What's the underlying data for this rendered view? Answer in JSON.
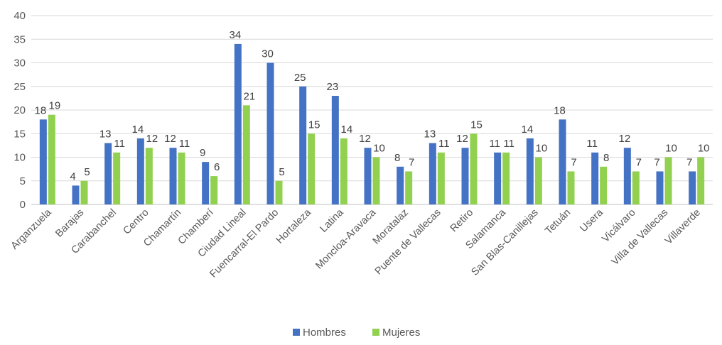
{
  "chart_data": {
    "type": "bar",
    "categories": [
      "Arganzuela",
      "Barajas",
      "Carabanchel",
      "Centro",
      "Chamartín",
      "Chamberí",
      "Ciudad Lineal",
      "Fuencarral-El Pardo",
      "Hortaleza",
      "Latina",
      "Moncloa-Aravaca",
      "Moratalaz",
      "Puente de Vallecas",
      "Retiro",
      "Salamanca",
      "San Blas-Canillejas",
      "Tetuán",
      "Usera",
      "Vicálvaro",
      "Villa de Vallecas",
      "Villaverde"
    ],
    "series": [
      {
        "name": "Hombres",
        "color": "#4472C4",
        "values": [
          18,
          4,
          13,
          14,
          12,
          9,
          34,
          30,
          25,
          23,
          12,
          8,
          13,
          12,
          11,
          14,
          18,
          11,
          12,
          7,
          7
        ]
      },
      {
        "name": "Mujeres",
        "color": "#92D050",
        "values": [
          19,
          5,
          11,
          12,
          11,
          6,
          21,
          5,
          15,
          14,
          10,
          7,
          11,
          15,
          11,
          10,
          7,
          8,
          7,
          10,
          10
        ]
      }
    ],
    "ylim": [
      0,
      40
    ],
    "yticks": [
      0,
      5,
      10,
      15,
      20,
      25,
      30,
      35,
      40
    ],
    "grid": true,
    "legend_position": "bottom-center",
    "data_labels": true
  }
}
